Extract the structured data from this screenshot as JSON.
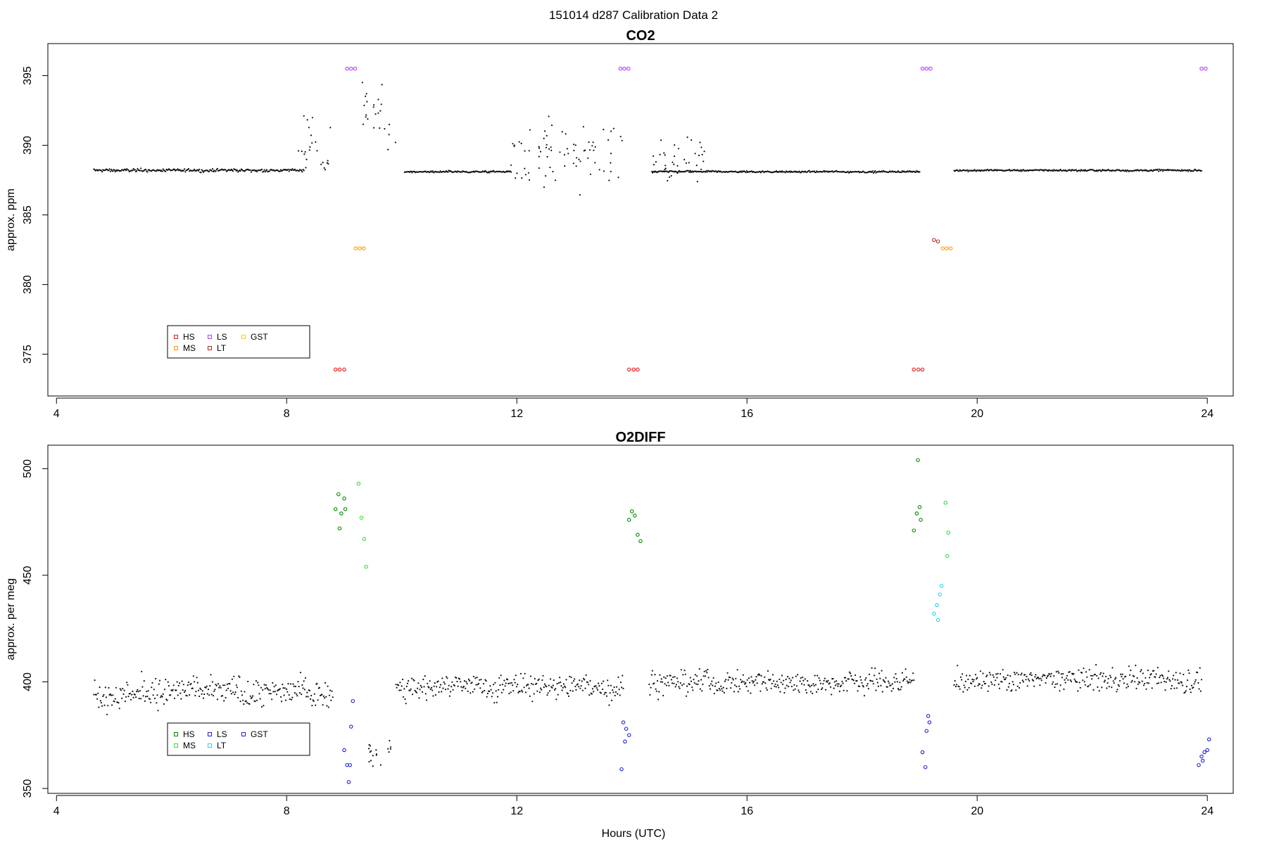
{
  "figure": {
    "supertitle": "151014   d287   Calibration Data 2",
    "xlabel": "Hours (UTC)"
  },
  "chart_data": [
    {
      "type": "scatter",
      "title": "CO2",
      "ylabel": "approx. ppm",
      "xlim": [
        3.85,
        24.45
      ],
      "ylim": [
        372.0,
        397.3
      ],
      "xticks": [
        4,
        8,
        12,
        16,
        20,
        24
      ],
      "yticks": [
        375,
        380,
        385,
        390,
        395
      ],
      "legend": {
        "placement": "bottom-left",
        "items": [
          {
            "label": "HS",
            "color": "#e41a1c"
          },
          {
            "label": "MS",
            "color": "#ff9900"
          },
          {
            "label": "LS",
            "color": "#b43cff"
          },
          {
            "label": "LT",
            "color": "#a52a2a"
          },
          {
            "label": "GST",
            "color": "#e6d600"
          }
        ]
      },
      "baseline": {
        "color": "#111111",
        "segments": [
          {
            "x0": 4.65,
            "x1": 8.3,
            "y": 388.2,
            "noise": 0.25
          },
          {
            "x0": 10.05,
            "x1": 11.9,
            "y": 388.1,
            "noise": 0.15
          },
          {
            "x0": 14.35,
            "x1": 19.0,
            "y": 388.1,
            "noise": 0.15
          },
          {
            "x0": 19.6,
            "x1": 23.9,
            "y": 388.2,
            "noise": 0.15
          }
        ],
        "excursions": [
          {
            "x0": 8.2,
            "x1": 8.8,
            "y": 389.5,
            "spread": 3.5
          },
          {
            "x0": 9.3,
            "x1": 9.9,
            "y": 392.0,
            "spread": 4.0
          },
          {
            "x0": 11.9,
            "x1": 13.85,
            "y": 389.5,
            "spread": 3.5
          },
          {
            "x0": 14.35,
            "x1": 15.3,
            "y": 389.0,
            "spread": 2.2
          }
        ]
      },
      "series": [
        {
          "name": "HS",
          "color": "#e41a1c",
          "points": [
            [
              8.85,
              373.9
            ],
            [
              8.92,
              373.9
            ],
            [
              9.0,
              373.9
            ],
            [
              13.95,
              373.9
            ],
            [
              14.03,
              373.9
            ],
            [
              14.1,
              373.9
            ],
            [
              18.9,
              373.9
            ],
            [
              18.98,
              373.9
            ],
            [
              19.05,
              373.9
            ]
          ]
        },
        {
          "name": "MS",
          "color": "#ff9900",
          "points": [
            [
              9.2,
              382.6
            ],
            [
              9.27,
              382.6
            ],
            [
              9.34,
              382.6
            ],
            [
              19.4,
              382.6
            ],
            [
              19.47,
              382.6
            ],
            [
              19.54,
              382.6
            ]
          ]
        },
        {
          "name": "LS",
          "color": "#b43cff",
          "points": [
            [
              9.05,
              395.5
            ],
            [
              9.12,
              395.5
            ],
            [
              9.19,
              395.5
            ],
            [
              13.8,
              395.5
            ],
            [
              13.87,
              395.5
            ],
            [
              13.94,
              395.5
            ],
            [
              19.05,
              395.5
            ],
            [
              19.12,
              395.5
            ],
            [
              19.19,
              395.5
            ],
            [
              23.9,
              395.5
            ],
            [
              23.97,
              395.5
            ]
          ]
        },
        {
          "name": "LT",
          "color": "#a52a2a",
          "points": [
            [
              19.25,
              383.2
            ],
            [
              19.32,
              383.1
            ]
          ]
        }
      ]
    },
    {
      "type": "scatter",
      "title": "O2DIFF",
      "ylabel": "approx. per meg",
      "xlim": [
        3.85,
        24.45
      ],
      "ylim": [
        347.7,
        511.0
      ],
      "xticks": [
        4,
        8,
        12,
        16,
        20,
        24
      ],
      "yticks": [
        350,
        400,
        450,
        500
      ],
      "legend": {
        "placement": "bottom-left",
        "items": [
          {
            "label": "HS",
            "color": "#008800"
          },
          {
            "label": "MS",
            "color": "#33dd33"
          },
          {
            "label": "LS",
            "color": "#1f1fd6"
          },
          {
            "label": "LT",
            "color": "#22d3e6"
          },
          {
            "label": "GST",
            "color": "#1f1fd6"
          }
        ]
      },
      "baseline": {
        "color": "#111111",
        "segments": [
          {
            "x0": 4.65,
            "x1": 8.8,
            "y": 395.0,
            "noise": 16.0
          },
          {
            "x0": 9.9,
            "x1": 13.85,
            "y": 398.0,
            "noise": 14.0
          },
          {
            "x0": 14.3,
            "x1": 18.9,
            "y": 400.0,
            "noise": 13.0
          },
          {
            "x0": 19.6,
            "x1": 23.9,
            "y": 401.0,
            "noise": 13.0
          }
        ],
        "excursions": [
          {
            "x0": 9.4,
            "x1": 9.85,
            "y": 366.0,
            "spread": 8.0
          }
        ]
      },
      "series": [
        {
          "name": "HS",
          "color": "#008800",
          "points": [
            [
              8.85,
              481
            ],
            [
              8.9,
              488
            ],
            [
              8.95,
              479
            ],
            [
              9.0,
              486
            ],
            [
              9.02,
              481
            ],
            [
              8.92,
              472
            ],
            [
              13.95,
              476
            ],
            [
              14.0,
              480
            ],
            [
              14.05,
              478
            ],
            [
              14.1,
              469
            ],
            [
              14.15,
              466
            ],
            [
              18.9,
              471
            ],
            [
              18.95,
              479
            ],
            [
              19.0,
              482
            ],
            [
              19.02,
              476
            ],
            [
              18.97,
              504
            ]
          ]
        },
        {
          "name": "MS",
          "color": "#33dd33",
          "points": [
            [
              9.25,
              493
            ],
            [
              9.3,
              477
            ],
            [
              9.35,
              467
            ],
            [
              9.38,
              454
            ],
            [
              19.45,
              484
            ],
            [
              19.5,
              470
            ],
            [
              19.48,
              459
            ]
          ]
        },
        {
          "name": "LS",
          "color": "#1f1fd6",
          "points": [
            [
              9.0,
              368
            ],
            [
              9.05,
              361
            ],
            [
              9.1,
              361
            ],
            [
              9.08,
              353
            ],
            [
              9.15,
              391
            ],
            [
              9.12,
              379
            ],
            [
              13.85,
              381
            ],
            [
              13.9,
              378
            ],
            [
              13.95,
              375
            ],
            [
              13.88,
              372
            ],
            [
              13.82,
              359
            ],
            [
              19.05,
              367
            ],
            [
              19.1,
              360
            ],
            [
              19.12,
              377
            ],
            [
              19.15,
              384
            ],
            [
              19.17,
              381
            ]
          ]
        },
        {
          "name": "LT",
          "color": "#22d3e6",
          "points": [
            [
              19.25,
              432
            ],
            [
              19.3,
              436
            ],
            [
              19.35,
              441
            ],
            [
              19.38,
              445
            ],
            [
              19.32,
              429
            ]
          ]
        },
        {
          "name": "GST",
          "color": "#1f1fd6",
          "points": [
            [
              23.85,
              361
            ],
            [
              23.9,
              365
            ],
            [
              23.95,
              367
            ],
            [
              24.0,
              368
            ],
            [
              24.03,
              373
            ],
            [
              23.92,
              363
            ]
          ]
        }
      ]
    }
  ]
}
